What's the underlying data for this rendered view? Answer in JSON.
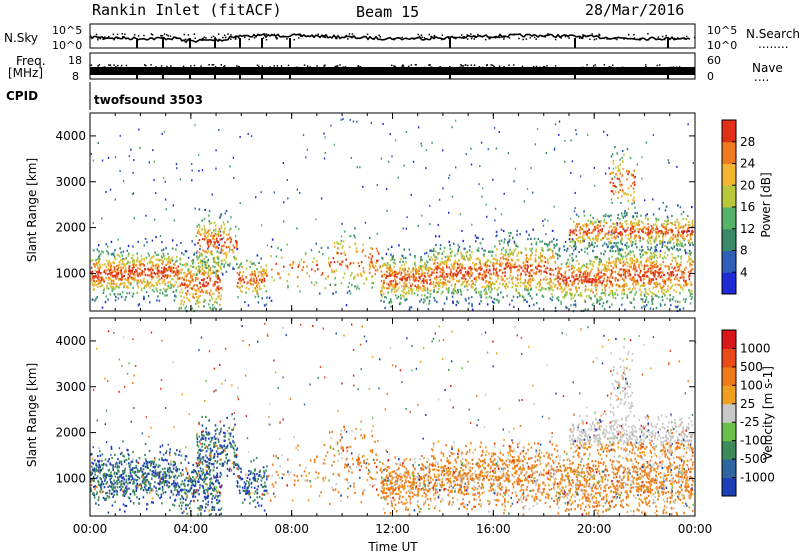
{
  "header": {
    "site": "Rankin Inlet (fitACF)",
    "beam": "Beam 15",
    "date": "28/Mar/2016"
  },
  "side_labels": {
    "nsky": "N.Sky",
    "nsearch": "N.Search",
    "nsearch_dots": "........",
    "freq_line1": "Freq.",
    "freq_line2": "[MHz]",
    "nave": "Nave",
    "nave_dots": "....",
    "cpid": "CPID",
    "cpid_value": "twofsound 3503"
  },
  "noise_panel": {
    "ylim_left_labels": [
      "10^5",
      "10^0"
    ],
    "ylim_right_labels": [
      "10^5",
      "10^0"
    ]
  },
  "freq_panel": {
    "left_ticks": [
      "18",
      "8"
    ],
    "right_ticks": [
      "60",
      "0"
    ]
  },
  "chart_data": [
    {
      "type": "heatmap",
      "name": "power",
      "ylabel": "Slant Range [km]",
      "xlabel": "Time UT",
      "ylim": [
        180,
        4500
      ],
      "y_ticks": [
        1000,
        2000,
        3000,
        4000
      ],
      "x_ticks": [
        "00:00",
        "04:00",
        "08:00",
        "12:00",
        "16:00",
        "20:00",
        "00:00"
      ],
      "colorbar": {
        "label": "Power [dB]",
        "ticks": [
          "4",
          "8",
          "12",
          "16",
          "20",
          "24",
          "28"
        ],
        "colors": [
          "#1f2bd6",
          "#2f60b8",
          "#3a8a6a",
          "#55b36a",
          "#b8c83a",
          "#f2b632",
          "#f07a1e",
          "#e23018"
        ]
      }
    },
    {
      "type": "heatmap",
      "name": "velocity",
      "ylabel": "Slant Range [km]",
      "xlabel": "Time UT",
      "ylim": [
        180,
        4500
      ],
      "y_ticks": [
        1000,
        2000,
        3000,
        4000
      ],
      "x_ticks": [
        "00:00",
        "04:00",
        "08:00",
        "12:00",
        "16:00",
        "20:00",
        "00:00"
      ],
      "colorbar": {
        "label": "Velocity [m s-1]",
        "ticks": [
          "1000",
          "500",
          "100",
          "25",
          "-25",
          "-100",
          "-500",
          "-1000"
        ],
        "colors": [
          "#1c3fb8",
          "#2f67a0",
          "#3c8a5a",
          "#6ac04a",
          "#c8c8c8",
          "#f0a020",
          "#f07a18",
          "#e84a18",
          "#d81818"
        ]
      }
    }
  ],
  "colors": {
    "axis": "#000000",
    "gray_scatter": "#c8c8c8"
  }
}
